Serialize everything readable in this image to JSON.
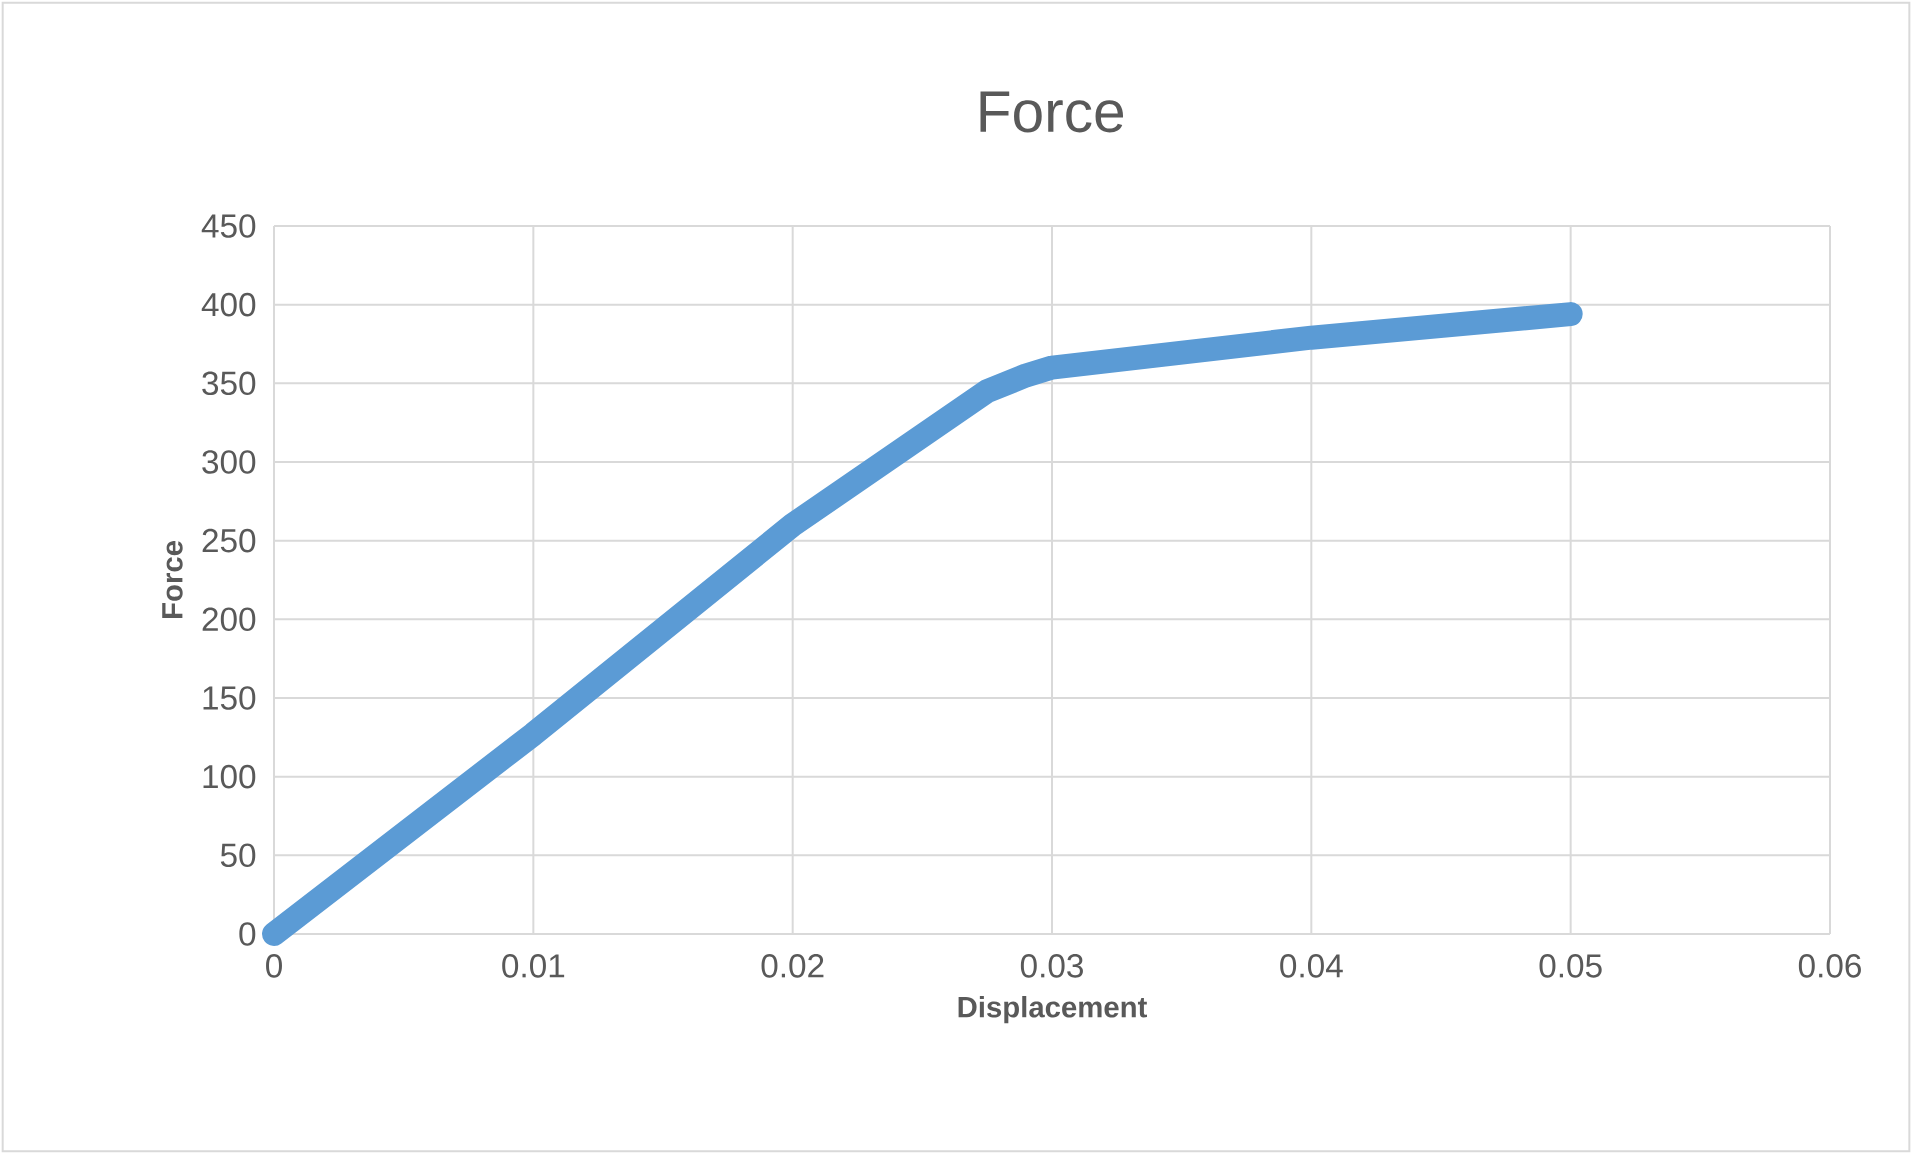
{
  "chart_data": {
    "type": "line",
    "title": "Force",
    "xlabel": "Displacement",
    "ylabel": "Force",
    "x": [
      0,
      0.01,
      0.02,
      0.0275,
      0.029,
      0.03,
      0.04,
      0.05
    ],
    "series": [
      {
        "color": "#5b9bd5",
        "values": [
          0,
          127,
          260,
          345,
          355,
          360,
          379,
          394
        ]
      }
    ],
    "xlim": [
      0,
      0.06
    ],
    "xticks": [
      0,
      0.01,
      0.02,
      0.03,
      0.04,
      0.05,
      0.06
    ],
    "ylim": [
      0,
      450
    ],
    "yticks": [
      0,
      50,
      100,
      150,
      200,
      250,
      300,
      350,
      400,
      450
    ],
    "grid": true
  }
}
